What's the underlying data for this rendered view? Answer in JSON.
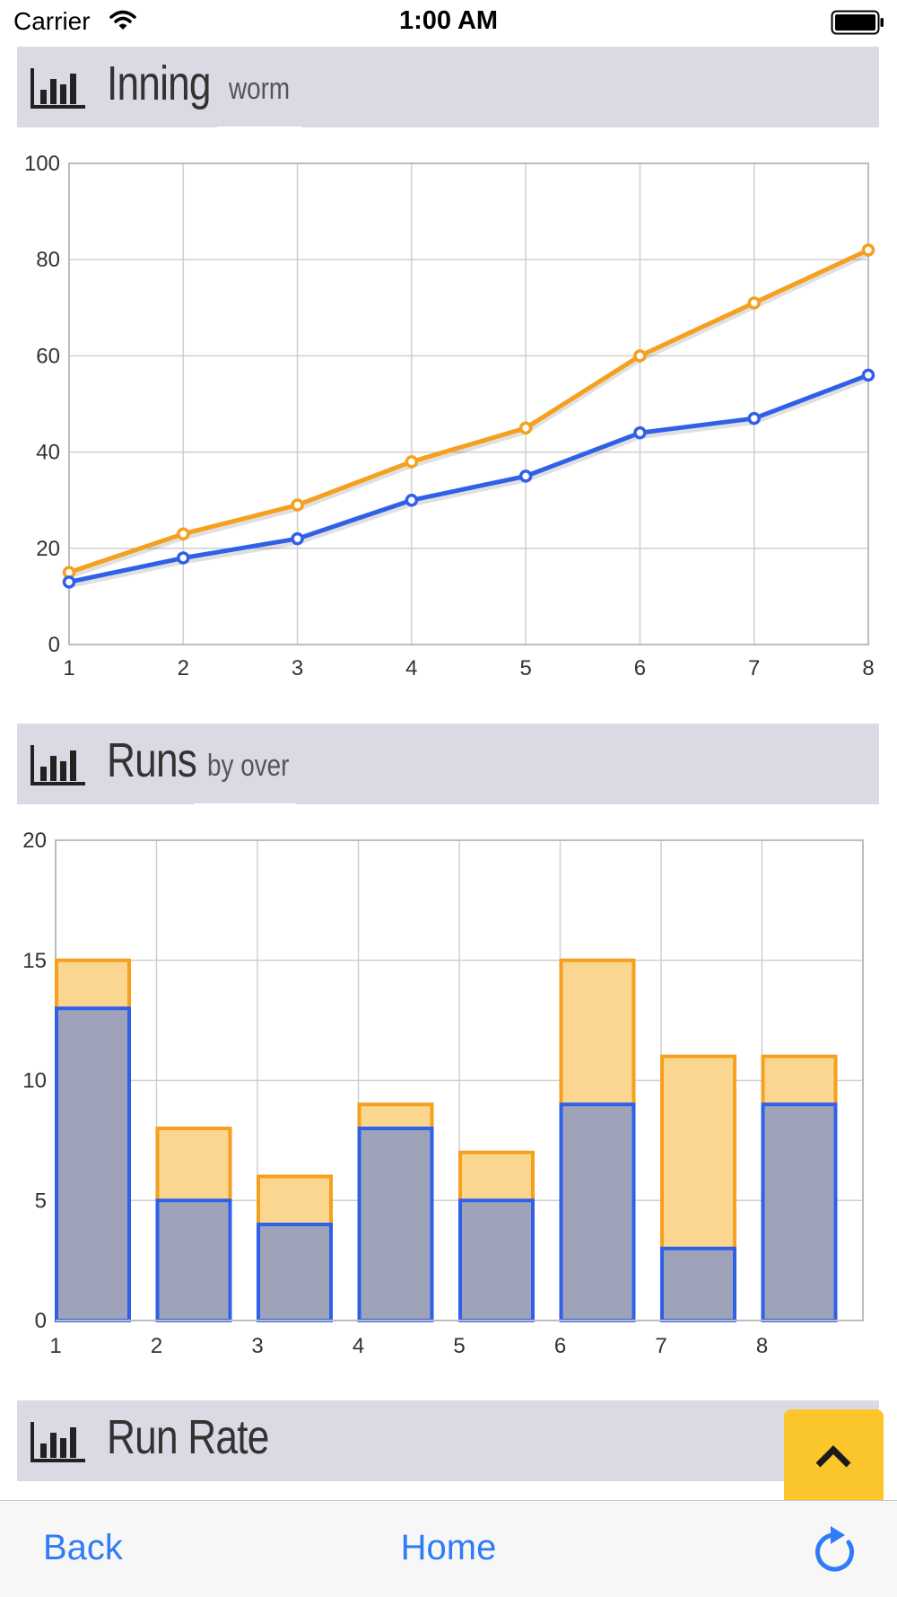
{
  "status_bar": {
    "carrier": "Carrier",
    "time": "1:00 AM"
  },
  "sections": [
    {
      "title": "Inning",
      "subtitle": "worm"
    },
    {
      "title": "Runs",
      "subtitle": "by over"
    },
    {
      "title": "Run Rate",
      "subtitle": ""
    }
  ],
  "colors": {
    "series_a": "#f5a01e",
    "series_b": "#3060e8",
    "header_bg": "#dadae5",
    "accent": "#fbc52c",
    "link": "#2f7cf6"
  },
  "bottom_nav": {
    "back": "Back",
    "home": "Home"
  },
  "chart_data": [
    {
      "type": "line",
      "x": [
        1,
        2,
        3,
        4,
        5,
        6,
        7,
        8
      ],
      "ylim": [
        0,
        100
      ],
      "yticks": [
        0,
        20,
        40,
        60,
        80,
        100
      ],
      "grid": true,
      "series": [
        {
          "values": [
            15,
            23,
            29,
            38,
            45,
            60,
            71,
            82
          ],
          "color": "#f5a01e"
        },
        {
          "values": [
            13,
            18,
            22,
            30,
            35,
            44,
            47,
            56
          ],
          "color": "#3060e8"
        }
      ]
    },
    {
      "type": "bar",
      "categories": [
        "1",
        "2",
        "3",
        "4",
        "5",
        "6",
        "7",
        "8"
      ],
      "ylim": [
        0,
        20
      ],
      "yticks": [
        0,
        5,
        10,
        15,
        20
      ],
      "grid": true,
      "series": [
        {
          "values": [
            15,
            8,
            6,
            9,
            7,
            15,
            11,
            11
          ],
          "color": "#f5a01e",
          "fill": "#fad690"
        },
        {
          "values": [
            13,
            5,
            4,
            8,
            5,
            9,
            3,
            9
          ],
          "color": "#3060e8",
          "fill": "#9ea3b9"
        }
      ]
    }
  ]
}
